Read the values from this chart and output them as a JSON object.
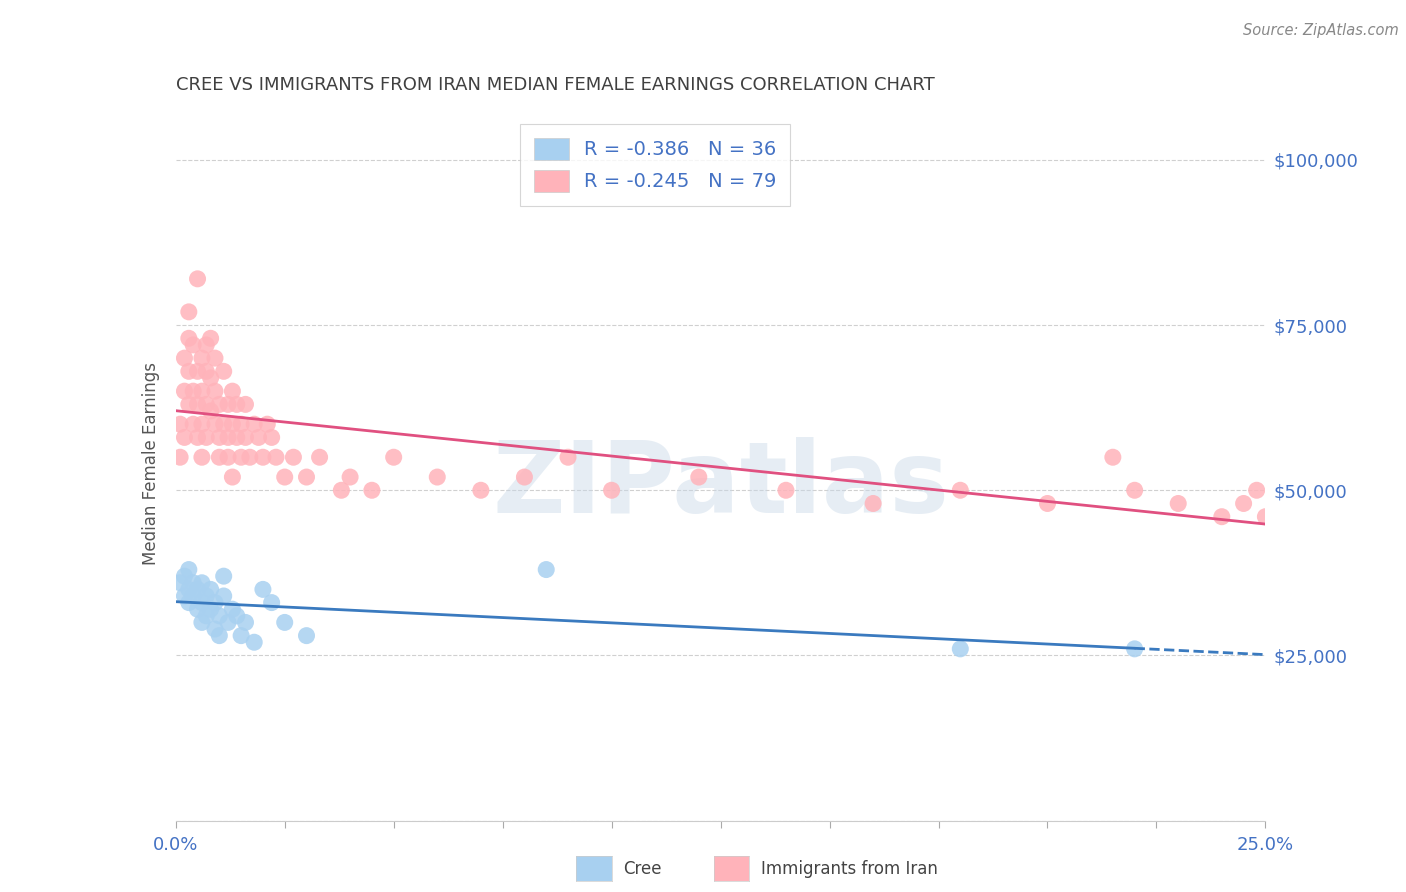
{
  "title": "CREE VS IMMIGRANTS FROM IRAN MEDIAN FEMALE EARNINGS CORRELATION CHART",
  "source": "Source: ZipAtlas.com",
  "ylabel": "Median Female Earnings",
  "y_ticks": [
    0,
    25000,
    50000,
    75000,
    100000
  ],
  "y_tick_labels": [
    "",
    "$25,000",
    "$50,000",
    "$75,000",
    "$100,000"
  ],
  "x_range": [
    0.0,
    0.25
  ],
  "y_range": [
    0,
    108000
  ],
  "legend_r1": "R = -0.386",
  "legend_n1": "N = 36",
  "legend_r2": "R = -0.245",
  "legend_n2": "N = 79",
  "cree_color": "#a8d0f0",
  "iran_color": "#ffb3ba",
  "cree_line_color": "#3a7abf",
  "iran_line_color": "#e05080",
  "watermark": "ZIPatlas",
  "background_color": "#ffffff",
  "grid_color": "#d0d0d0",
  "title_color": "#404040",
  "axis_label_color": "#4472c4",
  "legend_text_color": "#4472c4",
  "cree_scatter_x": [
    0.001,
    0.002,
    0.002,
    0.003,
    0.003,
    0.003,
    0.004,
    0.004,
    0.005,
    0.005,
    0.006,
    0.006,
    0.006,
    0.007,
    0.007,
    0.008,
    0.008,
    0.009,
    0.009,
    0.01,
    0.01,
    0.011,
    0.011,
    0.012,
    0.013,
    0.014,
    0.015,
    0.016,
    0.018,
    0.02,
    0.022,
    0.025,
    0.03,
    0.085,
    0.18,
    0.22
  ],
  "cree_scatter_y": [
    36000,
    34000,
    37000,
    35000,
    33000,
    38000,
    34000,
    36000,
    32000,
    35000,
    30000,
    33000,
    36000,
    34000,
    31000,
    35000,
    32000,
    29000,
    33000,
    28000,
    31000,
    37000,
    34000,
    30000,
    32000,
    31000,
    28000,
    30000,
    27000,
    35000,
    33000,
    30000,
    28000,
    38000,
    26000,
    26000
  ],
  "iran_scatter_x": [
    0.001,
    0.001,
    0.002,
    0.002,
    0.002,
    0.003,
    0.003,
    0.003,
    0.003,
    0.004,
    0.004,
    0.004,
    0.005,
    0.005,
    0.005,
    0.005,
    0.006,
    0.006,
    0.006,
    0.006,
    0.007,
    0.007,
    0.007,
    0.007,
    0.008,
    0.008,
    0.008,
    0.009,
    0.009,
    0.009,
    0.01,
    0.01,
    0.01,
    0.011,
    0.011,
    0.012,
    0.012,
    0.012,
    0.013,
    0.013,
    0.013,
    0.014,
    0.014,
    0.015,
    0.015,
    0.016,
    0.016,
    0.017,
    0.018,
    0.019,
    0.02,
    0.021,
    0.022,
    0.023,
    0.025,
    0.027,
    0.03,
    0.033,
    0.038,
    0.04,
    0.045,
    0.05,
    0.06,
    0.07,
    0.08,
    0.09,
    0.1,
    0.12,
    0.14,
    0.16,
    0.18,
    0.2,
    0.215,
    0.22,
    0.23,
    0.24,
    0.245,
    0.248,
    0.25
  ],
  "iran_scatter_y": [
    55000,
    60000,
    58000,
    65000,
    70000,
    63000,
    68000,
    73000,
    77000,
    60000,
    65000,
    72000,
    58000,
    63000,
    68000,
    82000,
    60000,
    65000,
    70000,
    55000,
    63000,
    68000,
    72000,
    58000,
    62000,
    67000,
    73000,
    60000,
    65000,
    70000,
    58000,
    63000,
    55000,
    60000,
    68000,
    58000,
    63000,
    55000,
    60000,
    65000,
    52000,
    58000,
    63000,
    60000,
    55000,
    58000,
    63000,
    55000,
    60000,
    58000,
    55000,
    60000,
    58000,
    55000,
    52000,
    55000,
    52000,
    55000,
    50000,
    52000,
    50000,
    55000,
    52000,
    50000,
    52000,
    55000,
    50000,
    52000,
    50000,
    48000,
    50000,
    48000,
    55000,
    50000,
    48000,
    46000,
    48000,
    50000,
    46000
  ]
}
